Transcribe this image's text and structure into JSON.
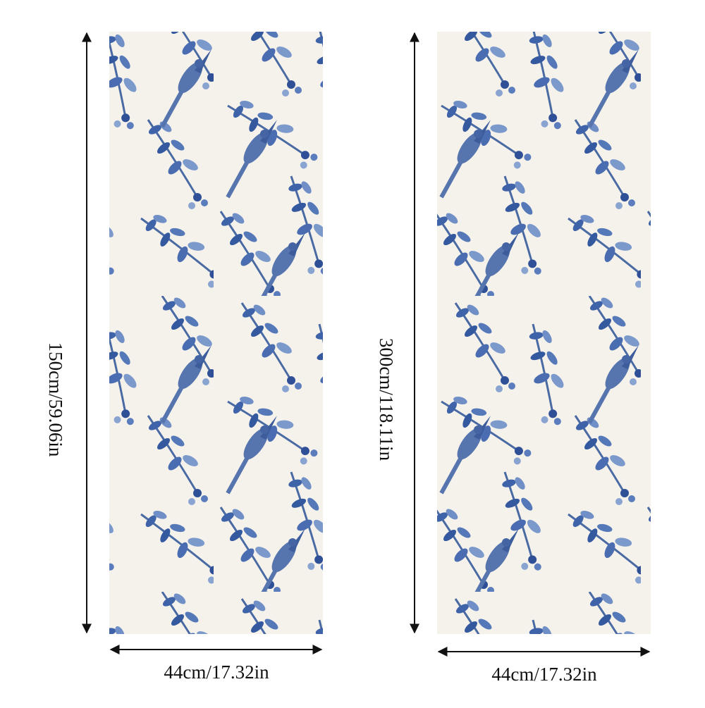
{
  "panels": [
    {
      "height_label": "150cm/59.06in",
      "width_label": "44cm/17.32in"
    },
    {
      "height_label": "300cm/118.11in",
      "width_label": "44cm/17.32in"
    }
  ]
}
